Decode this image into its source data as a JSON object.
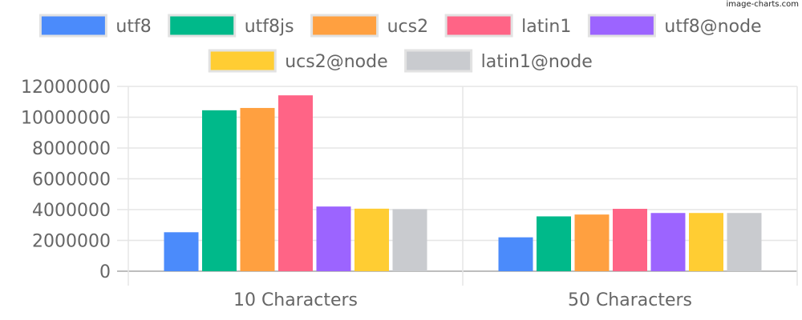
{
  "watermark": "image-charts.com",
  "chart_data": {
    "type": "bar",
    "categories": [
      "10 Characters",
      "50 Characters"
    ],
    "series": [
      {
        "name": "utf8",
        "color": "#4b8bfb",
        "values": [
          2530000,
          2200000
        ]
      },
      {
        "name": "utf8js",
        "color": "#00b98a",
        "values": [
          10450000,
          3560000
        ]
      },
      {
        "name": "ucs2",
        "color": "#ffa040",
        "values": [
          10600000,
          3680000
        ]
      },
      {
        "name": "latin1",
        "color": "#ff6486",
        "values": [
          11420000,
          4050000
        ]
      },
      {
        "name": "utf8@node",
        "color": "#9c64ff",
        "values": [
          4200000,
          3780000
        ]
      },
      {
        "name": "ucs2@node",
        "color": "#ffcd33",
        "values": [
          4060000,
          3780000
        ]
      },
      {
        "name": "latin1@node",
        "color": "#c9cbcf",
        "values": [
          4030000,
          3780000
        ]
      }
    ],
    "yticks": [
      "0",
      "2000000",
      "4000000",
      "6000000",
      "8000000",
      "10000000",
      "12000000"
    ],
    "ylim": [
      0,
      12000000
    ],
    "grid": true,
    "legend": "top"
  }
}
